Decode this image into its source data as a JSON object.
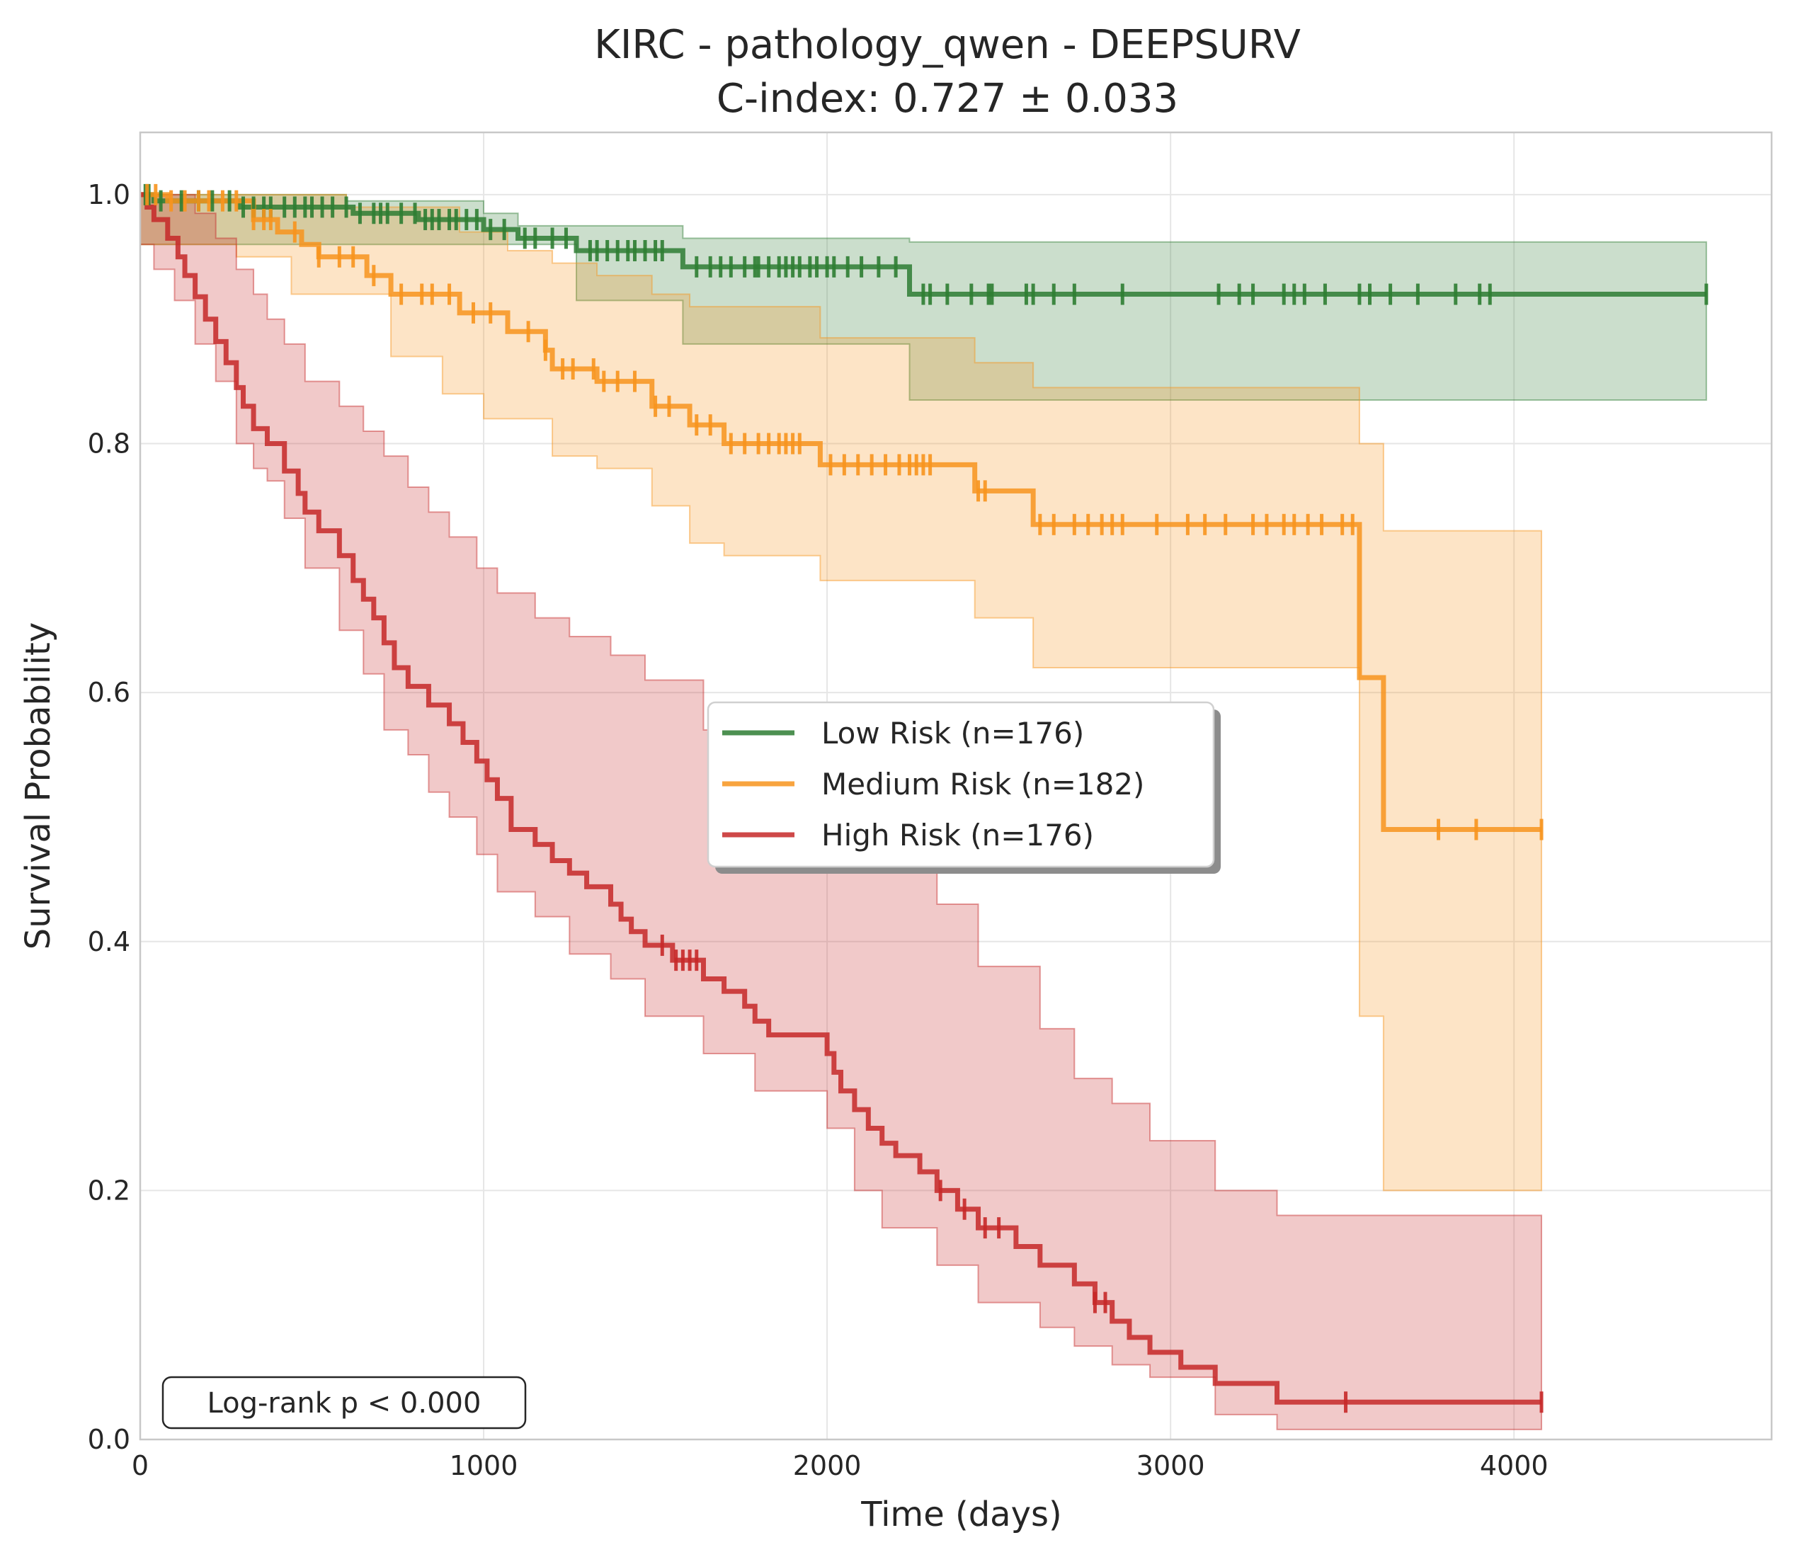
{
  "chart_data": {
    "type": "line",
    "subtype": "kaplan-meier",
    "title": "KIRC - pathology_qwen - DEEPSURV",
    "subtitle": "C-index: 0.727 ± 0.033",
    "xlabel": "Time (days)",
    "ylabel": "Survival Probability",
    "xlim": [
      0,
      4750
    ],
    "ylim": [
      0,
      1.05
    ],
    "xticks": [
      0,
      1000,
      2000,
      3000,
      4000
    ],
    "yticks": [
      0.0,
      0.2,
      0.4,
      0.6,
      0.8,
      1.0
    ],
    "xtick_labels": [
      "0",
      "1000",
      "2000",
      "3000",
      "4000"
    ],
    "ytick_labels": [
      "0.0",
      "0.2",
      "0.4",
      "0.6",
      "0.8",
      "1.0"
    ],
    "grid": true,
    "legend_position": "center-right",
    "annotation": "Log-rank p < 0.000",
    "series": [
      {
        "name": "Low Risk (n=176)",
        "color": "#2e7d32",
        "steps": [
          [
            0,
            1.0
          ],
          [
            40,
            0.995
          ],
          [
            290,
            0.99
          ],
          [
            620,
            0.985
          ],
          [
            810,
            0.98
          ],
          [
            1000,
            0.972
          ],
          [
            1100,
            0.965
          ],
          [
            1270,
            0.955
          ],
          [
            1580,
            0.942
          ],
          [
            2240,
            0.92
          ],
          [
            4560,
            0.92
          ]
        ],
        "ci_lower": [
          [
            0,
            0.96
          ],
          [
            1270,
            0.915
          ],
          [
            1580,
            0.88
          ],
          [
            2240,
            0.835
          ],
          [
            4560,
            0.835
          ]
        ],
        "ci_upper": [
          [
            0,
            1.0
          ],
          [
            600,
            0.995
          ],
          [
            1000,
            0.985
          ],
          [
            1100,
            0.975
          ],
          [
            1580,
            0.965
          ],
          [
            2240,
            0.962
          ],
          [
            4560,
            0.962
          ]
        ],
        "censored": [
          15,
          25,
          60,
          120,
          170,
          210,
          260,
          300,
          330,
          360,
          380,
          420,
          450,
          480,
          500,
          530,
          560,
          600,
          640,
          680,
          700,
          720,
          760,
          800,
          830,
          850,
          870,
          900,
          920,
          950,
          980,
          1020,
          1060,
          1120,
          1150,
          1200,
          1240,
          1310,
          1330,
          1360,
          1390,
          1420,
          1440,
          1470,
          1500,
          1520,
          1620,
          1660,
          1690,
          1720,
          1760,
          1790,
          1800,
          1830,
          1860,
          1880,
          1900,
          1920,
          1950,
          1970,
          2000,
          2020,
          2060,
          2100,
          2150,
          2200,
          2280,
          2300,
          2350,
          2420,
          2470,
          2480,
          2580,
          2600,
          2660,
          2720,
          2860,
          3140,
          3200,
          3240,
          3330,
          3360,
          3390,
          3450,
          3550,
          3580,
          3640,
          3720,
          3830,
          3900,
          3930,
          4560
        ]
      },
      {
        "name": "Medium Risk (n=182)",
        "color": "#f7941d",
        "steps": [
          [
            0,
            1.0
          ],
          [
            80,
            0.995
          ],
          [
            330,
            0.98
          ],
          [
            400,
            0.97
          ],
          [
            470,
            0.96
          ],
          [
            520,
            0.95
          ],
          [
            660,
            0.935
          ],
          [
            730,
            0.92
          ],
          [
            930,
            0.905
          ],
          [
            1070,
            0.89
          ],
          [
            1180,
            0.875
          ],
          [
            1200,
            0.86
          ],
          [
            1330,
            0.85
          ],
          [
            1490,
            0.83
          ],
          [
            1600,
            0.815
          ],
          [
            1700,
            0.8
          ],
          [
            1980,
            0.783
          ],
          [
            2430,
            0.762
          ],
          [
            2600,
            0.735
          ],
          [
            3550,
            0.612
          ],
          [
            3620,
            0.49
          ],
          [
            4080,
            0.49
          ]
        ],
        "ci_lower": [
          [
            0,
            0.96
          ],
          [
            280,
            0.95
          ],
          [
            440,
            0.92
          ],
          [
            730,
            0.87
          ],
          [
            880,
            0.84
          ],
          [
            1000,
            0.82
          ],
          [
            1200,
            0.79
          ],
          [
            1330,
            0.78
          ],
          [
            1490,
            0.75
          ],
          [
            1600,
            0.72
          ],
          [
            1700,
            0.71
          ],
          [
            1980,
            0.69
          ],
          [
            2430,
            0.66
          ],
          [
            2600,
            0.62
          ],
          [
            3550,
            0.34
          ],
          [
            3620,
            0.2
          ],
          [
            4080,
            0.2
          ]
        ],
        "ci_upper": [
          [
            0,
            1.0
          ],
          [
            600,
            0.99
          ],
          [
            930,
            0.97
          ],
          [
            1070,
            0.955
          ],
          [
            1200,
            0.945
          ],
          [
            1330,
            0.935
          ],
          [
            1490,
            0.92
          ],
          [
            1600,
            0.91
          ],
          [
            1980,
            0.885
          ],
          [
            2430,
            0.865
          ],
          [
            2600,
            0.845
          ],
          [
            3550,
            0.8
          ],
          [
            3620,
            0.73
          ],
          [
            4080,
            0.73
          ]
        ],
        "censored": [
          20,
          45,
          90,
          130,
          170,
          200,
          240,
          280,
          330,
          360,
          380,
          450,
          520,
          580,
          620,
          680,
          760,
          820,
          850,
          900,
          970,
          1020,
          1130,
          1180,
          1230,
          1260,
          1320,
          1350,
          1390,
          1440,
          1500,
          1540,
          1620,
          1660,
          1720,
          1760,
          1800,
          1830,
          1860,
          1880,
          1900,
          1920,
          2010,
          2050,
          2090,
          2130,
          2170,
          2210,
          2240,
          2260,
          2280,
          2300,
          2440,
          2460,
          2620,
          2660,
          2720,
          2760,
          2800,
          2830,
          2860,
          2960,
          3050,
          3100,
          3160,
          3240,
          3280,
          3330,
          3360,
          3400,
          3440,
          3500,
          3530,
          3780,
          3890,
          4080
        ]
      },
      {
        "name": "High Risk (n=176)",
        "color": "#c62828",
        "steps": [
          [
            0,
            1.0
          ],
          [
            20,
            0.99
          ],
          [
            40,
            0.98
          ],
          [
            80,
            0.965
          ],
          [
            110,
            0.95
          ],
          [
            130,
            0.935
          ],
          [
            160,
            0.918
          ],
          [
            190,
            0.9
          ],
          [
            220,
            0.882
          ],
          [
            250,
            0.865
          ],
          [
            280,
            0.845
          ],
          [
            300,
            0.83
          ],
          [
            330,
            0.812
          ],
          [
            370,
            0.8
          ],
          [
            420,
            0.778
          ],
          [
            460,
            0.76
          ],
          [
            480,
            0.745
          ],
          [
            520,
            0.73
          ],
          [
            580,
            0.71
          ],
          [
            620,
            0.69
          ],
          [
            650,
            0.675
          ],
          [
            680,
            0.66
          ],
          [
            710,
            0.64
          ],
          [
            740,
            0.62
          ],
          [
            780,
            0.605
          ],
          [
            840,
            0.59
          ],
          [
            900,
            0.575
          ],
          [
            940,
            0.56
          ],
          [
            980,
            0.545
          ],
          [
            1010,
            0.53
          ],
          [
            1040,
            0.515
          ],
          [
            1080,
            0.49
          ],
          [
            1150,
            0.478
          ],
          [
            1200,
            0.465
          ],
          [
            1250,
            0.455
          ],
          [
            1300,
            0.444
          ],
          [
            1370,
            0.43
          ],
          [
            1400,
            0.418
          ],
          [
            1430,
            0.408
          ],
          [
            1470,
            0.397
          ],
          [
            1550,
            0.385
          ],
          [
            1640,
            0.37
          ],
          [
            1700,
            0.36
          ],
          [
            1760,
            0.348
          ],
          [
            1790,
            0.336
          ],
          [
            1830,
            0.325
          ],
          [
            2000,
            0.31
          ],
          [
            2020,
            0.295
          ],
          [
            2040,
            0.28
          ],
          [
            2080,
            0.265
          ],
          [
            2120,
            0.25
          ],
          [
            2160,
            0.238
          ],
          [
            2200,
            0.228
          ],
          [
            2270,
            0.215
          ],
          [
            2320,
            0.2
          ],
          [
            2380,
            0.185
          ],
          [
            2440,
            0.17
          ],
          [
            2550,
            0.155
          ],
          [
            2620,
            0.14
          ],
          [
            2720,
            0.125
          ],
          [
            2780,
            0.11
          ],
          [
            2830,
            0.095
          ],
          [
            2880,
            0.082
          ],
          [
            2940,
            0.07
          ],
          [
            3030,
            0.058
          ],
          [
            3130,
            0.045
          ],
          [
            3310,
            0.03
          ],
          [
            4080,
            0.03
          ]
        ],
        "ci_lower": [
          [
            0,
            0.96
          ],
          [
            40,
            0.94
          ],
          [
            100,
            0.915
          ],
          [
            160,
            0.88
          ],
          [
            220,
            0.85
          ],
          [
            280,
            0.8
          ],
          [
            330,
            0.78
          ],
          [
            370,
            0.77
          ],
          [
            420,
            0.74
          ],
          [
            480,
            0.7
          ],
          [
            580,
            0.65
          ],
          [
            650,
            0.615
          ],
          [
            710,
            0.57
          ],
          [
            780,
            0.55
          ],
          [
            840,
            0.52
          ],
          [
            900,
            0.5
          ],
          [
            980,
            0.47
          ],
          [
            1040,
            0.44
          ],
          [
            1150,
            0.42
          ],
          [
            1250,
            0.39
          ],
          [
            1370,
            0.37
          ],
          [
            1470,
            0.34
          ],
          [
            1640,
            0.31
          ],
          [
            1790,
            0.28
          ],
          [
            2000,
            0.25
          ],
          [
            2080,
            0.2
          ],
          [
            2160,
            0.17
          ],
          [
            2320,
            0.14
          ],
          [
            2440,
            0.11
          ],
          [
            2620,
            0.09
          ],
          [
            2720,
            0.075
          ],
          [
            2830,
            0.06
          ],
          [
            2940,
            0.05
          ],
          [
            3130,
            0.02
          ],
          [
            3310,
            0.008
          ],
          [
            4080,
            0.008
          ]
        ],
        "ci_upper": [
          [
            0,
            1.0
          ],
          [
            100,
            1.0
          ],
          [
            160,
            0.985
          ],
          [
            220,
            0.965
          ],
          [
            280,
            0.94
          ],
          [
            330,
            0.92
          ],
          [
            370,
            0.9
          ],
          [
            420,
            0.88
          ],
          [
            480,
            0.85
          ],
          [
            580,
            0.83
          ],
          [
            650,
            0.81
          ],
          [
            710,
            0.79
          ],
          [
            780,
            0.765
          ],
          [
            840,
            0.745
          ],
          [
            900,
            0.725
          ],
          [
            980,
            0.7
          ],
          [
            1040,
            0.68
          ],
          [
            1150,
            0.66
          ],
          [
            1250,
            0.645
          ],
          [
            1370,
            0.63
          ],
          [
            1470,
            0.61
          ],
          [
            1640,
            0.57
          ],
          [
            1790,
            0.545
          ],
          [
            2000,
            0.5
          ],
          [
            2080,
            0.49
          ],
          [
            2160,
            0.47
          ],
          [
            2320,
            0.43
          ],
          [
            2440,
            0.38
          ],
          [
            2620,
            0.33
          ],
          [
            2720,
            0.29
          ],
          [
            2830,
            0.27
          ],
          [
            2940,
            0.24
          ],
          [
            3130,
            0.2
          ],
          [
            3310,
            0.18
          ],
          [
            4080,
            0.088
          ]
        ],
        "censored": [
          1520,
          1560,
          1580,
          1600,
          1620,
          2330,
          2400,
          2460,
          2500,
          2780,
          2810,
          3510,
          4080
        ]
      }
    ]
  }
}
